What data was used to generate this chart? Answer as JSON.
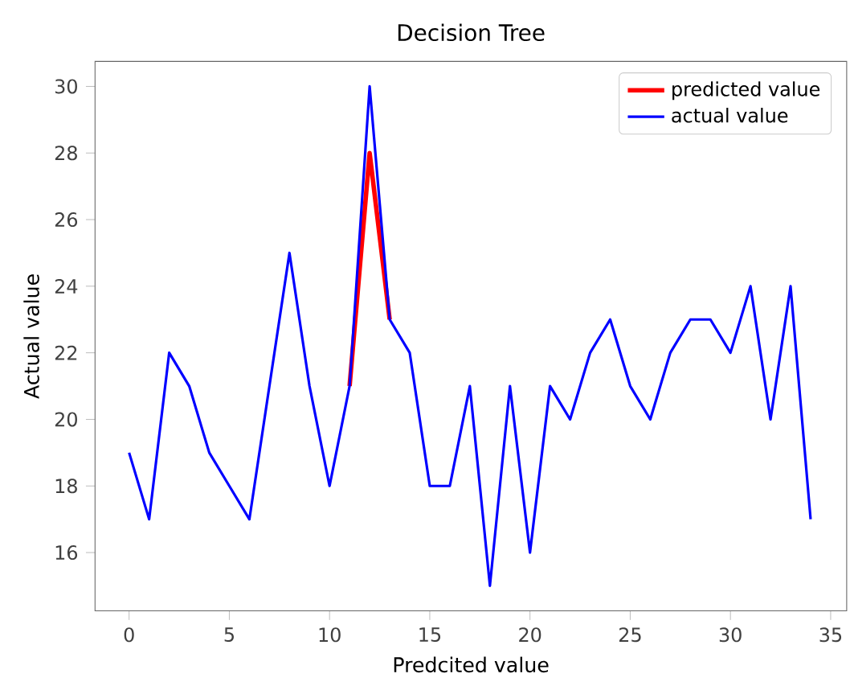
{
  "chart_data": {
    "type": "line",
    "title": "Decision Tree",
    "xlabel": "Predcited value",
    "ylabel": "Actual value",
    "x": [
      0,
      1,
      2,
      3,
      4,
      5,
      6,
      7,
      8,
      9,
      10,
      11,
      12,
      13,
      14,
      15,
      16,
      17,
      18,
      19,
      20,
      21,
      22,
      23,
      24,
      25,
      26,
      27,
      28,
      29,
      30,
      31,
      32,
      33,
      34
    ],
    "series": [
      {
        "name": "predicted value",
        "color": "#ff0000",
        "values": [
          null,
          null,
          null,
          null,
          null,
          null,
          null,
          null,
          null,
          null,
          null,
          21,
          28,
          23,
          null,
          null,
          null,
          null,
          null,
          null,
          null,
          null,
          null,
          null,
          null,
          null,
          null,
          null,
          null,
          null,
          null,
          null,
          null,
          null,
          null
        ]
      },
      {
        "name": "actual value",
        "color": "#0000ff",
        "values": [
          19,
          17,
          22,
          21,
          19,
          18,
          17,
          21,
          25,
          21,
          18,
          21,
          30,
          23,
          22,
          18,
          18,
          21,
          15,
          21,
          16,
          21,
          20,
          22,
          23,
          21,
          20,
          22,
          23,
          23,
          22,
          24,
          20,
          24,
          17
        ]
      }
    ],
    "xlim": [
      -1.7,
      35.8
    ],
    "ylim": [
      14.25,
      30.75
    ],
    "xticks": [
      0,
      5,
      10,
      15,
      20,
      25,
      30,
      35
    ],
    "yticks": [
      16,
      18,
      20,
      22,
      24,
      26,
      28,
      30
    ],
    "grid": false,
    "legend": "top right",
    "marker": "none",
    "line_style": "solid"
  }
}
